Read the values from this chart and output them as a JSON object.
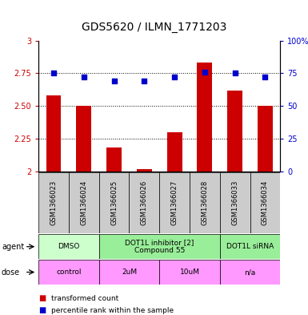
{
  "title": "GDS5620 / ILMN_1771203",
  "samples": [
    "GSM1366023",
    "GSM1366024",
    "GSM1366025",
    "GSM1366026",
    "GSM1366027",
    "GSM1366028",
    "GSM1366033",
    "GSM1366034"
  ],
  "red_values": [
    2.58,
    2.5,
    2.18,
    2.02,
    2.3,
    2.83,
    2.62,
    2.5
  ],
  "blue_values": [
    75,
    72,
    69,
    69,
    72,
    76,
    75,
    72
  ],
  "ylim_left": [
    2.0,
    3.0
  ],
  "ylim_right": [
    0,
    100
  ],
  "yticks_left": [
    2.0,
    2.25,
    2.5,
    2.75,
    3.0
  ],
  "ytick_labels_left": [
    "2",
    "2.25",
    "2.50",
    "2.75",
    "3"
  ],
  "yticks_right": [
    0,
    25,
    50,
    75,
    100
  ],
  "ytick_labels_right": [
    "0",
    "25",
    "50",
    "75",
    "100%"
  ],
  "red_color": "#cc0000",
  "blue_color": "#0000cc",
  "bar_width": 0.5,
  "agent_groups": [
    {
      "label": "DMSO",
      "start": 0,
      "end": 2,
      "color": "#ccffcc"
    },
    {
      "label": "DOT1L inhibitor [2]\nCompound 55",
      "start": 2,
      "end": 6,
      "color": "#99ee99"
    },
    {
      "label": "DOT1L siRNA",
      "start": 6,
      "end": 8,
      "color": "#99ee99"
    }
  ],
  "dose_groups": [
    {
      "label": "control",
      "start": 0,
      "end": 2,
      "color": "#ff99ff"
    },
    {
      "label": "2uM",
      "start": 2,
      "end": 4,
      "color": "#ff99ff"
    },
    {
      "label": "10uM",
      "start": 4,
      "end": 6,
      "color": "#ff99ff"
    },
    {
      "label": "n/a",
      "start": 6,
      "end": 8,
      "color": "#ff99ff"
    }
  ],
  "label_agent": "agent",
  "label_dose": "dose",
  "legend_red": "transformed count",
  "legend_blue": "percentile rank within the sample",
  "red_tick_color": "#cc0000",
  "blue_tick_color": "#0000cc",
  "sample_bg_color": "#cccccc",
  "title_fontsize": 10,
  "tick_fontsize": 7,
  "label_fontsize": 7,
  "sample_fontsize": 6,
  "table_fontsize": 6.5
}
